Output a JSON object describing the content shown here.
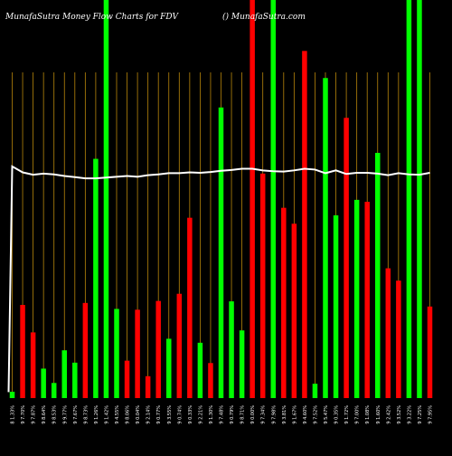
{
  "header": {
    "title_left": "MunafaSutra  Money Flow  Charts for FDV",
    "title_right": "() MunafaSutra.com"
  },
  "colors": {
    "background": "#000000",
    "up": "#00ff00",
    "down": "#ff0000",
    "grid": "#b8860b",
    "line": "#ffffff",
    "text": "#ffffff"
  },
  "chart_data": {
    "type": "bar",
    "title": "MunafaSutra  Money Flow  Charts for FDV",
    "grid": true,
    "ylim": [
      0,
      100
    ],
    "categories": [
      "8 1.33%",
      "9 7.70%",
      "9 7.87%",
      "9 8.64%",
      "9 8.53%",
      "9 9.77%",
      "9 7.67%",
      "9 8.73%",
      "9 1.26%",
      "9 1.42%",
      "9 4.55%",
      "9 8.06%",
      "9 0.04%",
      "9 2.14%",
      "9 0.77%",
      "9 3.55%",
      "9 0.74%",
      "9 0.33%",
      "9 2.21%",
      "9 1.30%",
      "9 7.48%",
      "9 0.79%",
      "9 8.71%",
      "9 0.00%",
      "9 7.34%",
      "9 7.98%",
      "9 3.81%",
      "9 1.67%",
      "9 4.60%",
      "9 7.52%",
      "9 5.47%",
      "9 0.35%",
      "9 1.72%",
      "9 7.00%",
      "9 1.08%",
      "9 1.60%",
      "9 2.42%",
      "9 3.52%",
      "9 3.22%",
      "9 7.25%",
      "9 7.95%"
    ],
    "values": [
      1.6,
      23.4,
      16.5,
      7.4,
      3.8,
      12.0,
      8.9,
      23.9,
      60.1,
      100,
      22.4,
      9.4,
      22.2,
      5.5,
      24.4,
      14.9,
      26.2,
      45.3,
      13.9,
      8.8,
      73.0,
      24.3,
      17.0,
      100,
      56.4,
      100,
      47.8,
      43.8,
      87.2,
      3.6,
      80.4,
      45.9,
      70.4,
      49.8,
      49.3,
      61.6,
      32.6,
      29.5,
      100,
      100,
      23.0
    ],
    "directions": [
      "up",
      "down",
      "down",
      "up",
      "up",
      "up",
      "up",
      "down",
      "up",
      "up",
      "up",
      "down",
      "down",
      "down",
      "down",
      "up",
      "down",
      "down",
      "up",
      "down",
      "up",
      "up",
      "up",
      "down",
      "down",
      "up",
      "down",
      "down",
      "down",
      "up",
      "up",
      "up",
      "down",
      "up",
      "down",
      "up",
      "down",
      "down",
      "up",
      "up",
      "down"
    ],
    "series": [
      {
        "values": [
          58.2,
          56.7,
          56.1,
          56.4,
          56.2,
          55.8,
          55.5,
          55.2,
          55.2,
          55.4,
          55.6,
          55.8,
          55.6,
          56.0,
          56.2,
          56.5,
          56.5,
          56.7,
          56.6,
          56.8,
          57.1,
          57.3,
          57.6,
          57.6,
          57.2,
          57.0,
          56.9,
          57.2,
          57.6,
          57.4,
          56.5,
          57.2,
          56.3,
          56.6,
          56.6,
          56.4,
          56.0,
          56.5,
          56.2,
          56.1,
          56.6
        ]
      }
    ]
  }
}
